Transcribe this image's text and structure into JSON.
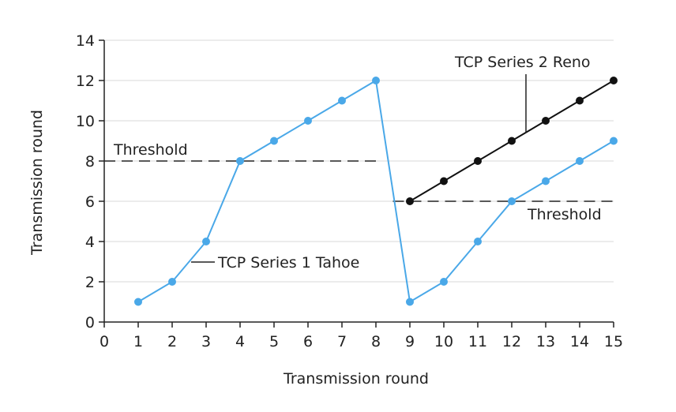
{
  "chart_data": {
    "type": "line",
    "xlabel": "Transmission round",
    "ylabel": "Transmission round",
    "xlim": [
      0,
      15
    ],
    "ylim": [
      0,
      14
    ],
    "x_ticks": [
      "0",
      "1",
      "2",
      "3",
      "4",
      "5",
      "6",
      "7",
      "8",
      "9",
      "10",
      "11",
      "12",
      "13",
      "14",
      "15"
    ],
    "y_ticks": [
      "0",
      "2",
      "4",
      "6",
      "8",
      "10",
      "12",
      "14"
    ],
    "grid": "horizontal",
    "series": [
      {
        "name": "TCP Series 1 Tahoe",
        "color": "#4aa8e8",
        "x": [
          1,
          2,
          3,
          4,
          5,
          6,
          7,
          8,
          9,
          10,
          11,
          12,
          13,
          14,
          15
        ],
        "y": [
          1,
          2,
          4,
          8,
          9,
          10,
          11,
          12,
          1,
          2,
          4,
          6,
          7,
          8,
          9
        ]
      },
      {
        "name": "TCP Series 2 Reno",
        "color": "#111111",
        "x": [
          9,
          10,
          11,
          12,
          13,
          14,
          15
        ],
        "y": [
          6,
          7,
          8,
          9,
          10,
          11,
          12
        ]
      }
    ],
    "thresholds": [
      {
        "label": "Threshold",
        "y": 8,
        "x_range": [
          0,
          8
        ]
      },
      {
        "label": "Threshold",
        "y": 6,
        "x_range": [
          8.5,
          15
        ]
      }
    ]
  }
}
